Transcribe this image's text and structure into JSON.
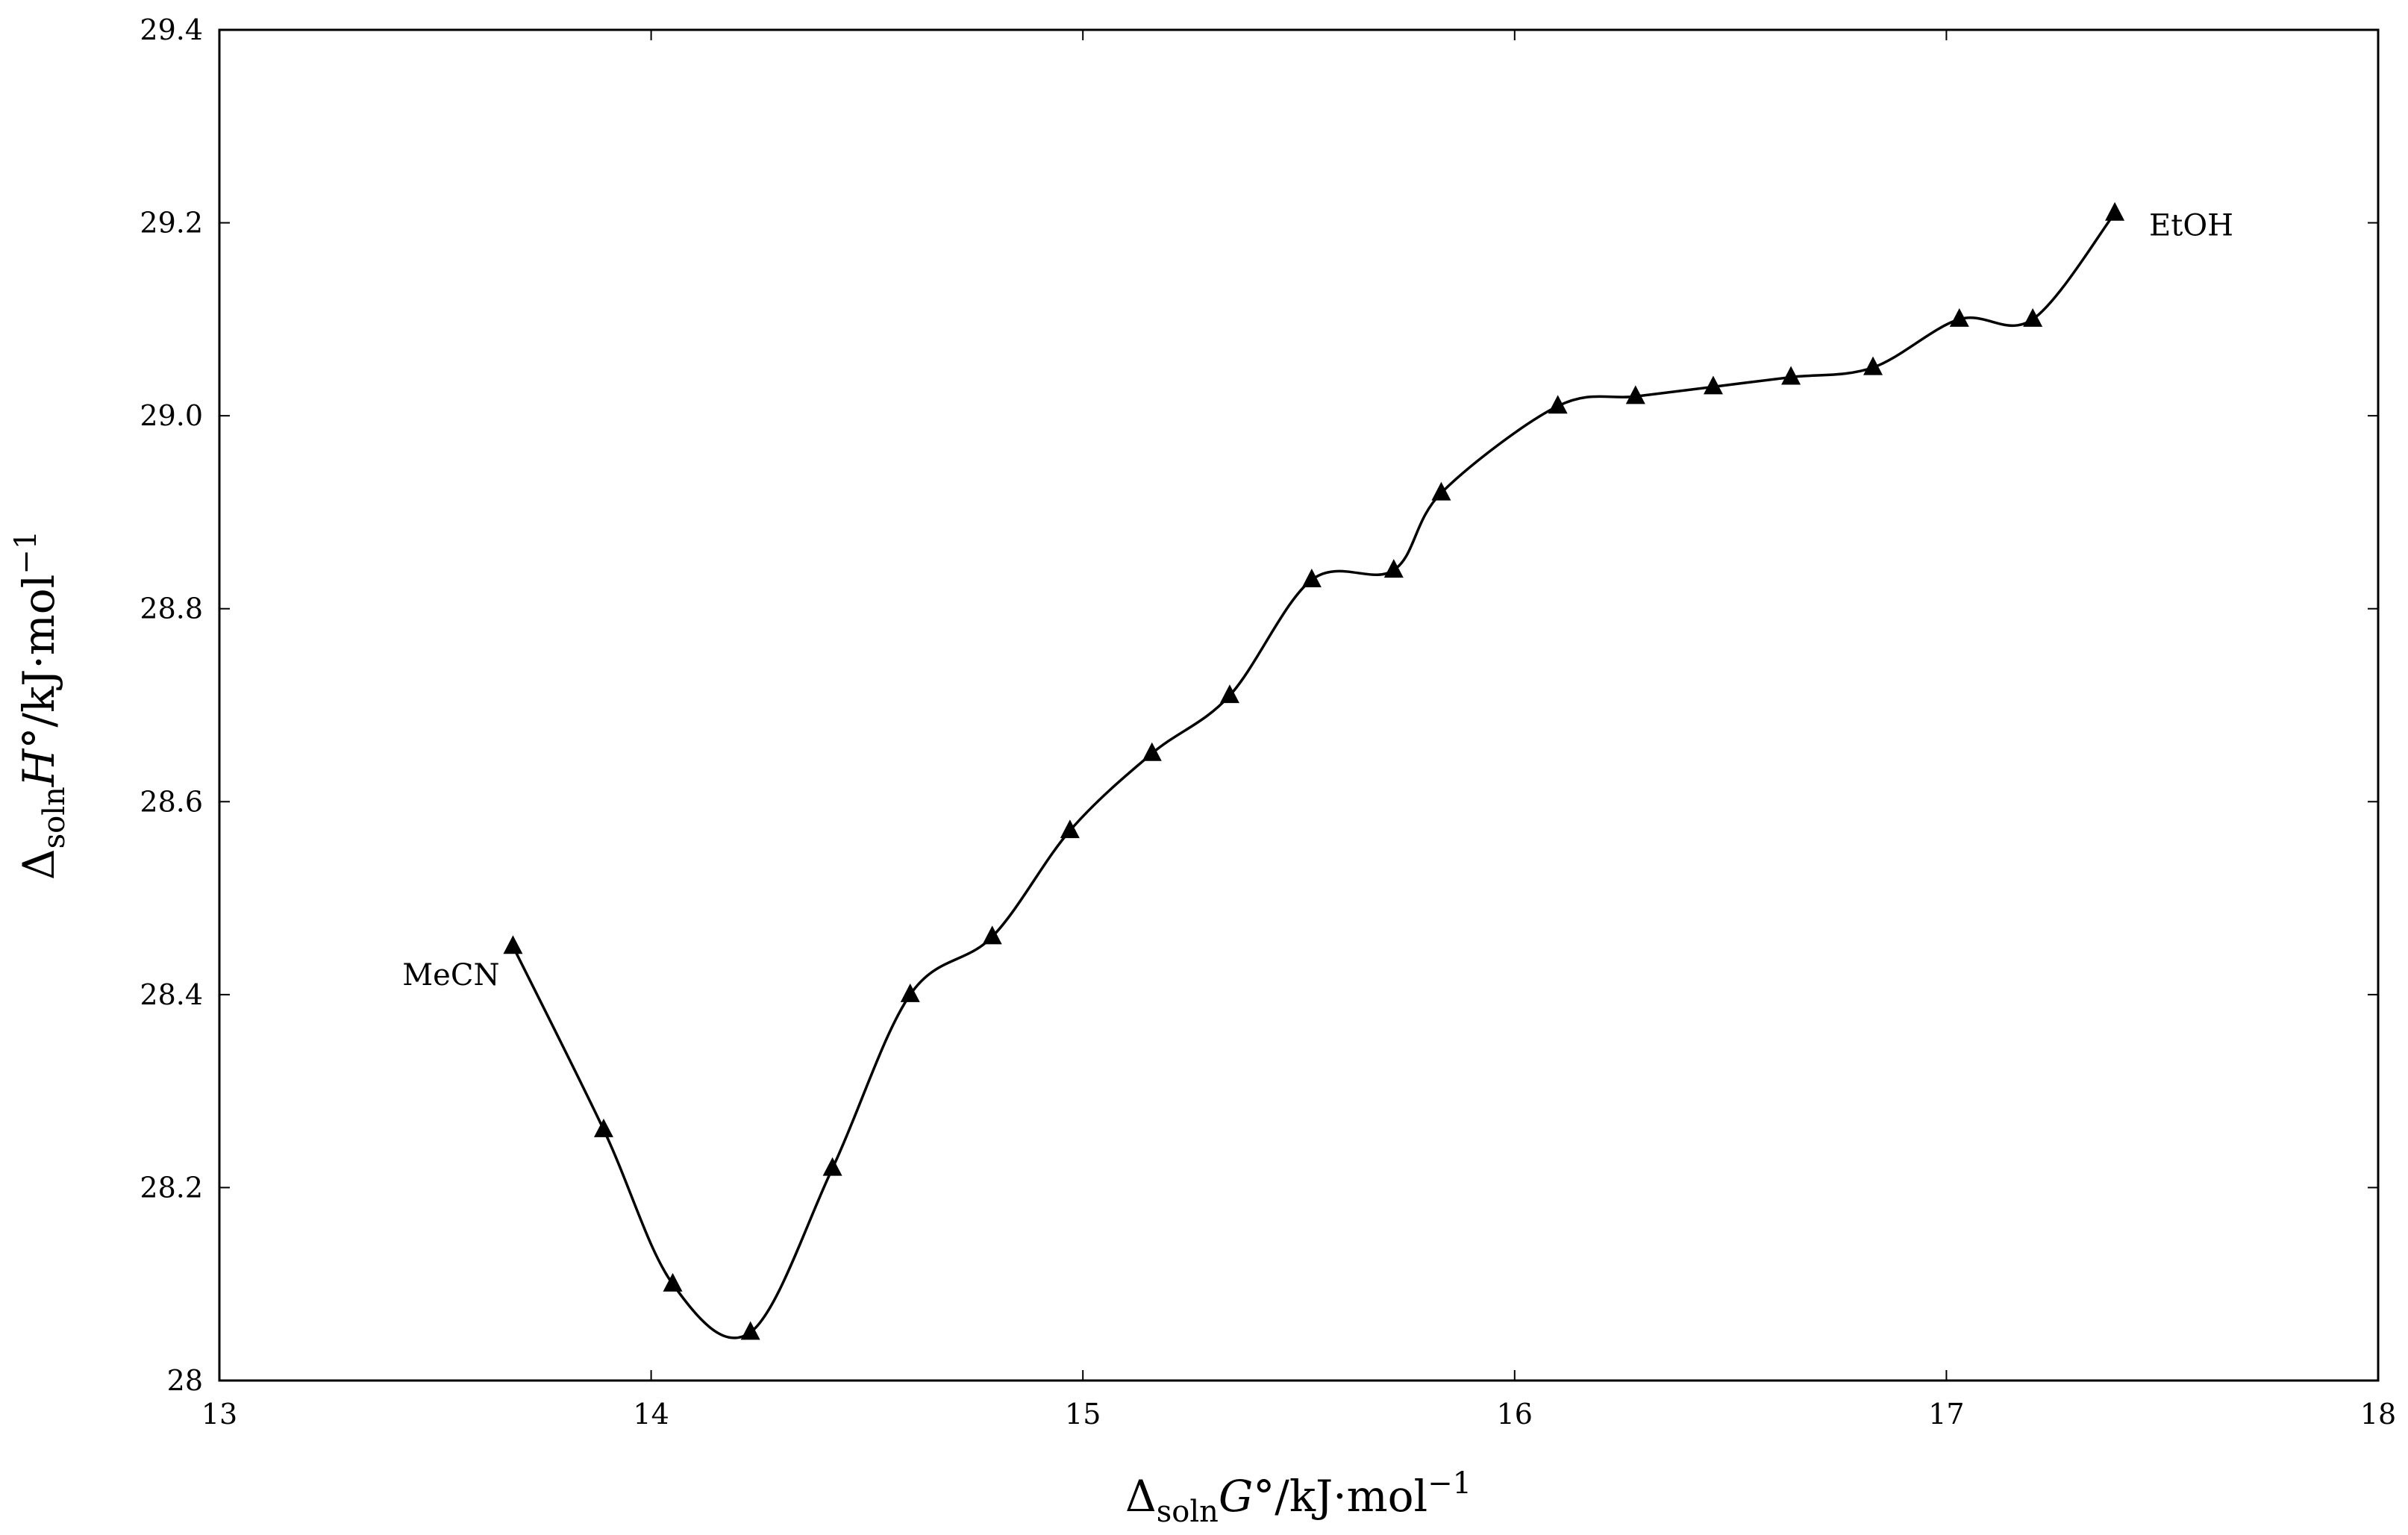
{
  "chart_data": {
    "type": "line",
    "title": "",
    "xlabel": {
      "main": "Δ",
      "sub": "soln",
      "var": "G°",
      "unit": "/kJ·mol",
      "sup": "−1"
    },
    "ylabel": {
      "main": "Δ",
      "sub": "soln",
      "var": "H°",
      "unit": "/kJ·mol",
      "sup": "−1"
    },
    "xlim": [
      13,
      18
    ],
    "ylim": [
      28,
      29.4
    ],
    "x_ticks": [
      "13",
      "14",
      "15",
      "16",
      "17",
      "18"
    ],
    "y_ticks": [
      "28",
      "28.2",
      "28.4",
      "28.6",
      "28.8",
      "29.0",
      "29.2",
      "29.4"
    ],
    "grid": false,
    "legend": "none",
    "marker": "triangle",
    "series": [
      {
        "x": [
          13.68,
          13.89,
          14.05,
          14.23,
          14.42,
          14.6,
          14.79,
          14.97,
          15.16,
          15.34,
          15.53,
          15.72,
          15.83,
          16.1,
          16.28,
          16.46,
          16.64,
          16.83,
          17.03,
          17.2,
          17.39
        ],
        "y": [
          28.45,
          28.26,
          28.1,
          28.05,
          28.22,
          28.4,
          28.46,
          28.57,
          28.65,
          28.71,
          28.83,
          28.84,
          28.92,
          29.01,
          29.02,
          29.03,
          29.04,
          29.05,
          29.1,
          29.1,
          29.21
        ]
      }
    ],
    "annotations": [
      {
        "text": "MeCN",
        "x": 13.68,
        "y": 28.45
      },
      {
        "text": "EtOH",
        "x": 17.39,
        "y": 29.21
      }
    ]
  }
}
